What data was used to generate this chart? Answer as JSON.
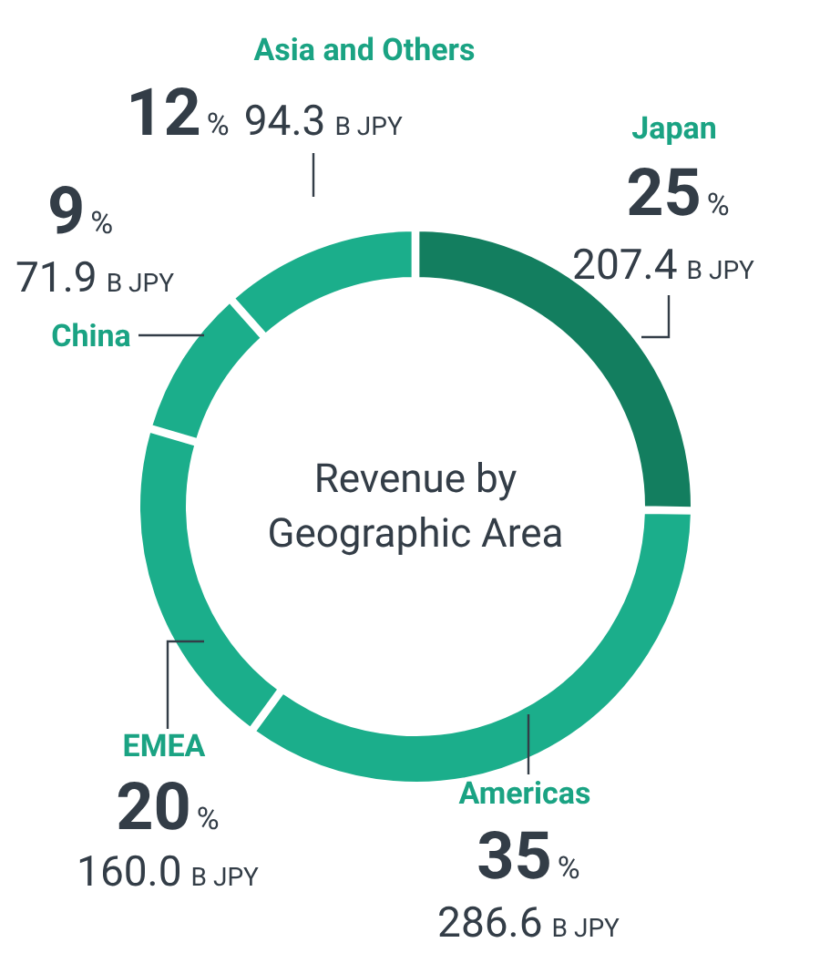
{
  "chart_data": {
    "type": "donut",
    "title": "Revenue by Geographic Area",
    "categories": [
      "Japan",
      "Americas",
      "EMEA",
      "China",
      "Asia and Others"
    ],
    "values": [
      207.4,
      286.6,
      160.0,
      71.9,
      94.3
    ],
    "colors": [
      "#137e5f",
      "#1bae8b",
      "#1bae8b",
      "#1bae8b",
      "#1bae8b"
    ],
    "value_labels": [
      "207.4 B JPY",
      "286.6 B JPY",
      "160.0 B JPY",
      "71.9 B JPY",
      "94.3 B JPY"
    ],
    "annotations": [
      {
        "text": "25%",
        "x": "Japan"
      },
      {
        "text": "35%",
        "x": "Americas"
      },
      {
        "text": "20%",
        "x": "EMEA"
      },
      {
        "text": "9%",
        "x": "China"
      },
      {
        "text": "12%",
        "x": "Asia and Others"
      }
    ]
  }
}
